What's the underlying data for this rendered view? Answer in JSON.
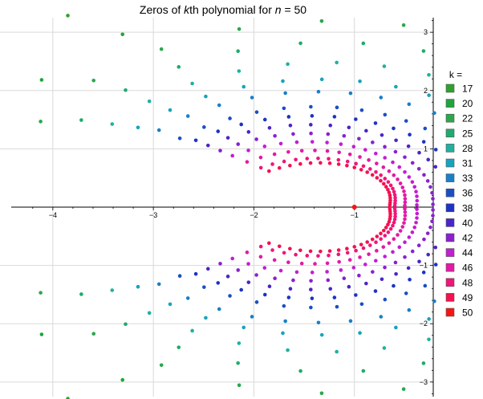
{
  "chart_data": {
    "type": "scatter",
    "title_parts": [
      "Zeros of ",
      "k",
      "th polynomial for ",
      "n",
      " = 50"
    ],
    "xlim": [
      -4.35,
      -0.2
    ],
    "ylim": [
      -3.25,
      3.25
    ],
    "xticks": [
      -4,
      -3,
      -2,
      -1
    ],
    "yticks": [
      -3,
      -2,
      -1,
      1,
      2,
      3
    ],
    "grid": true,
    "legend": {
      "title": "k =",
      "placement": "right"
    },
    "series": [
      {
        "name": "17",
        "color": "#2ea12e",
        "count": 17,
        "r_inner": 4.35,
        "r_outer": 4.35,
        "theta_max": 0.97
      },
      {
        "name": "20",
        "color": "#1fa53c",
        "count": 20,
        "r_inner": 3.55,
        "r_outer": 3.85,
        "theta_max": 0.9
      },
      {
        "name": "22",
        "color": "#2aa84c",
        "count": 22,
        "r_inner": 3.0,
        "r_outer": 3.45,
        "theta_max": 0.86
      },
      {
        "name": "25",
        "color": "#1dab6d",
        "count": 25,
        "r_inner": 2.6,
        "r_outer": 3.1,
        "theta_max": 0.84
      },
      {
        "name": "28",
        "color": "#1fb1a0",
        "count": 28,
        "r_inner": 2.2,
        "r_outer": 2.8,
        "theta_max": 0.83
      },
      {
        "name": "31",
        "color": "#17a3bd",
        "count": 31,
        "r_inner": 1.85,
        "r_outer": 2.55,
        "theta_max": 0.82
      },
      {
        "name": "33",
        "color": "#1a7fc6",
        "count": 33,
        "r_inner": 1.6,
        "r_outer": 2.35,
        "theta_max": 0.81
      },
      {
        "name": "36",
        "color": "#1a4fc4",
        "count": 36,
        "r_inner": 1.32,
        "r_outer": 2.1,
        "theta_max": 0.81
      },
      {
        "name": "38",
        "color": "#1d33c4",
        "count": 38,
        "r_inner": 1.12,
        "r_outer": 1.95,
        "theta_max": 0.8
      },
      {
        "name": "40",
        "color": "#4b25c8",
        "count": 40,
        "r_inner": 0.95,
        "r_outer": 1.8,
        "theta_max": 0.8
      },
      {
        "name": "42",
        "color": "#8a20d0",
        "count": 42,
        "r_inner": 0.78,
        "r_outer": 1.65,
        "theta_max": 0.8
      },
      {
        "name": "44",
        "color": "#c21ed2",
        "count": 44,
        "r_inner": 0.62,
        "r_outer": 1.5,
        "theta_max": 0.8
      },
      {
        "name": "46",
        "color": "#e21aa5",
        "count": 46,
        "r_inner": 0.5,
        "r_outer": 1.32,
        "theta_max": 0.8
      },
      {
        "name": "48",
        "color": "#f0157a",
        "count": 48,
        "r_inner": 0.4,
        "r_outer": 1.15,
        "theta_max": 0.8
      },
      {
        "name": "49",
        "color": "#f5104f",
        "count": 49,
        "r_inner": 0.35,
        "r_outer": 1.05,
        "theta_max": 0.8
      },
      {
        "name": "50",
        "color": "#f51515",
        "count": 1,
        "points": [
          [
            -1.0,
            0.0
          ]
        ]
      }
    ]
  }
}
